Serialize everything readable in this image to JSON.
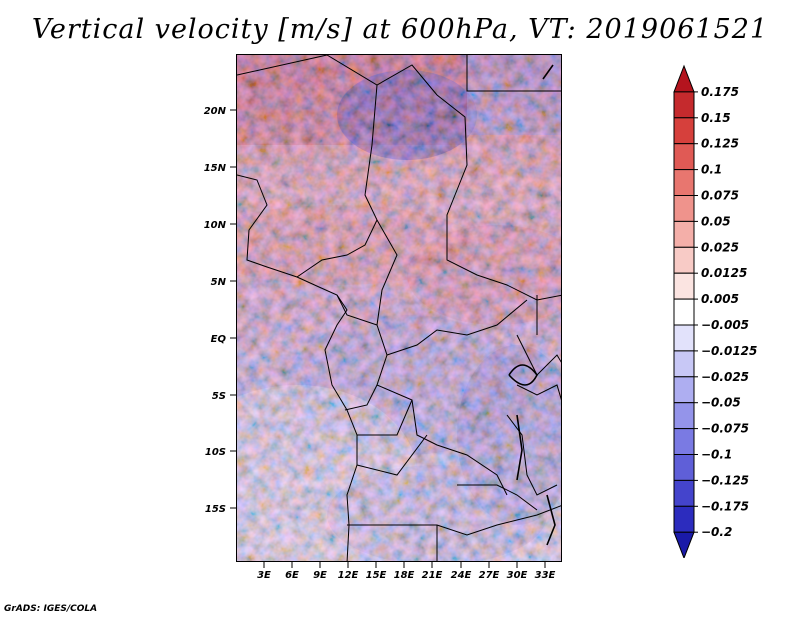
{
  "title": "Vertical velocity [m/s] at 600hPa, VT: 2019061521",
  "credit": "GrADS: IGES/COLA",
  "map": {
    "lat_labels": [
      "20N",
      "15N",
      "10N",
      "5N",
      "EQ",
      "5S",
      "10S",
      "15S"
    ],
    "lon_labels": [
      "3E",
      "6E",
      "9E",
      "12E",
      "15E",
      "18E",
      "21E",
      "24E",
      "27E",
      "30E",
      "33E"
    ],
    "lat_range": [
      -19.5,
      24.5
    ],
    "lon_range": [
      0.5,
      35.0
    ]
  },
  "colorbar": {
    "labels": [
      "0.175",
      "0.15",
      "0.125",
      "0.1",
      "0.075",
      "0.05",
      "0.025",
      "0.0125",
      "0.005",
      "−0.005",
      "−0.0125",
      "−0.025",
      "−0.05",
      "−0.075",
      "−0.1",
      "−0.125",
      "−0.175",
      "−0.2"
    ],
    "colors": [
      "#b4141e",
      "#c52a2d",
      "#d6403c",
      "#e05a55",
      "#e8766f",
      "#ef938c",
      "#f4afa9",
      "#f8cbc6",
      "#fbe4e1",
      "#ffffff",
      "#e2e2fb",
      "#c8c8f6",
      "#aeaef1",
      "#9494ea",
      "#7a7ae3",
      "#5f5fd8",
      "#4444cc",
      "#2c2cbe",
      "#1a1aa8"
    ]
  }
}
